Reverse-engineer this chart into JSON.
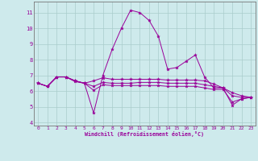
{
  "xlabel": "Windchill (Refroidissement éolien,°C)",
  "bg_color": "#ceeaec",
  "grid_color": "#aacccc",
  "line_color": "#990099",
  "spine_color": "#777777",
  "xlim": [
    -0.5,
    23.5
  ],
  "ylim": [
    3.8,
    11.7
  ],
  "yticks": [
    4,
    5,
    6,
    7,
    8,
    9,
    10,
    11
  ],
  "xticks": [
    0,
    1,
    2,
    3,
    4,
    5,
    6,
    7,
    8,
    9,
    10,
    11,
    12,
    13,
    14,
    15,
    16,
    17,
    18,
    19,
    20,
    21,
    22,
    23
  ],
  "series": [
    [
      6.5,
      6.3,
      6.9,
      6.9,
      6.6,
      6.5,
      4.6,
      7.0,
      8.65,
      10.0,
      11.15,
      11.0,
      10.5,
      9.5,
      7.4,
      7.5,
      7.9,
      8.3,
      6.9,
      6.2,
      6.2,
      5.1,
      5.5,
      5.6
    ],
    [
      6.5,
      6.3,
      6.9,
      6.9,
      6.65,
      6.5,
      6.05,
      6.4,
      6.35,
      6.35,
      6.35,
      6.35,
      6.35,
      6.35,
      6.3,
      6.3,
      6.3,
      6.3,
      6.2,
      6.1,
      6.1,
      5.3,
      5.5,
      5.6
    ],
    [
      6.5,
      6.3,
      6.9,
      6.9,
      6.65,
      6.5,
      6.3,
      6.55,
      6.5,
      6.5,
      6.5,
      6.55,
      6.55,
      6.55,
      6.5,
      6.5,
      6.5,
      6.5,
      6.4,
      6.3,
      6.2,
      5.7,
      5.6,
      5.6
    ],
    [
      6.5,
      6.3,
      6.9,
      6.9,
      6.65,
      6.5,
      6.65,
      6.85,
      6.75,
      6.75,
      6.75,
      6.75,
      6.75,
      6.75,
      6.7,
      6.7,
      6.7,
      6.7,
      6.65,
      6.45,
      6.2,
      5.9,
      5.7,
      5.6
    ]
  ]
}
